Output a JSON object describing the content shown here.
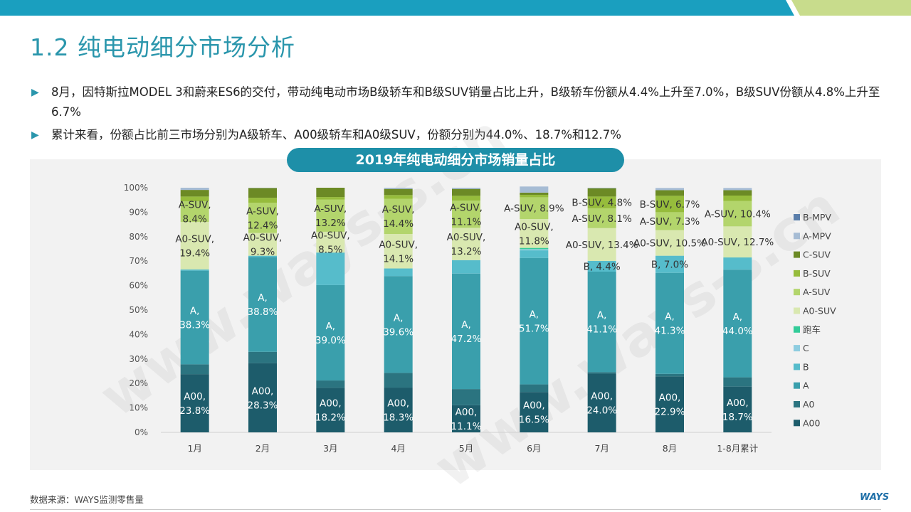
{
  "page": {
    "title": "1.2 纯电动细分市场分析",
    "bullets": [
      "8月，因特斯拉MODEL 3和蔚来ES6的交付，带动纯电动市场B级轿车和B级SUV销量占比上升，B级轿车份额从4.4%上升至7.0%，B级SUV份额从4.8%上升至6.7%",
      "累计来看，份额占比前三市场分别为A级轿车、A00级轿车和A0级SUV，份额分别为44.0%、18.7%和12.7%"
    ],
    "source": "数据来源：WAYS监测零售量",
    "logo": "WAYS",
    "watermark": "www.ways-s.cn"
  },
  "colors": {
    "A00": "#1d5c6b",
    "A0": "#2b7480",
    "A": "#3a9fac",
    "B": "#56bccb",
    "C": "#8ecde0",
    "跑车": "#33cc99",
    "A0-SUV": "#d9e8b0",
    "A-SUV": "#b3d56c",
    "B-SUV": "#96bc3c",
    "C-SUV": "#6c8a25",
    "A-MPV": "#a6bcd4",
    "B-MPV": "#5b7fab",
    "title_bg": "#1e8fa8",
    "heading": "#2a96ac"
  },
  "chart_data": {
    "type": "bar",
    "stacked": true,
    "title": "2019年纯电动细分市场销量占比",
    "categories": [
      "1月",
      "2月",
      "3月",
      "4月",
      "5月",
      "6月",
      "7月",
      "8月",
      "1-8月累计"
    ],
    "ylim": [
      0,
      100
    ],
    "yticks": [
      "0%",
      "10%",
      "20%",
      "30%",
      "40%",
      "50%",
      "60%",
      "70%",
      "80%",
      "90%",
      "100%"
    ],
    "legend_position": "right",
    "series": [
      {
        "name": "A00",
        "values": [
          23.8,
          28.3,
          18.2,
          18.3,
          11.1,
          16.5,
          24.0,
          22.9,
          18.7
        ]
      },
      {
        "name": "A0",
        "values": [
          4.0,
          4.6,
          3.0,
          6.0,
          6.6,
          3.1,
          0.6,
          1.0,
          3.8
        ]
      },
      {
        "name": "A",
        "values": [
          38.3,
          38.8,
          39.0,
          39.6,
          47.2,
          51.7,
          41.1,
          41.3,
          44.0
        ]
      },
      {
        "name": "B",
        "values": [
          0.5,
          0.5,
          13.3,
          3.1,
          5.5,
          3.1,
          4.4,
          7.0,
          5.0
        ]
      },
      {
        "name": "C",
        "values": [
          0.0,
          0.0,
          0.0,
          0.0,
          0.0,
          0.5,
          0.0,
          0.0,
          0.0
        ]
      },
      {
        "name": "跑车",
        "values": [
          0.0,
          0.0,
          0.0,
          0.0,
          0.0,
          0.5,
          0.0,
          0.0,
          0.0
        ]
      },
      {
        "name": "A0-SUV",
        "values": [
          19.4,
          9.3,
          8.5,
          14.1,
          13.2,
          11.8,
          13.4,
          10.5,
          12.7
        ]
      },
      {
        "name": "A-SUV",
        "values": [
          8.4,
          12.4,
          13.2,
          14.4,
          11.1,
          8.9,
          8.1,
          7.3,
          10.4
        ]
      },
      {
        "name": "B-SUV",
        "values": [
          2.0,
          2.0,
          1.0,
          1.5,
          2.0,
          1.0,
          4.8,
          6.7,
          2.2
        ]
      },
      {
        "name": "C-SUV",
        "values": [
          2.7,
          4.0,
          3.8,
          2.5,
          2.8,
          0.9,
          3.4,
          2.3,
          2.2
        ]
      },
      {
        "name": "A-MPV",
        "values": [
          0.9,
          0.1,
          0.0,
          0.5,
          0.5,
          2.5,
          0.2,
          0.9,
          0.9
        ]
      },
      {
        "name": "B-MPV",
        "values": [
          0.0,
          0.0,
          0.0,
          0.0,
          0.0,
          0.0,
          0.0,
          0.0,
          0.0
        ]
      }
    ],
    "data_labels": [
      {
        "cat": 0,
        "series": "A00",
        "text": [
          "A00,",
          "23.8%"
        ]
      },
      {
        "cat": 0,
        "series": "A",
        "text": [
          "A,",
          "38.3%"
        ]
      },
      {
        "cat": 0,
        "series": "A0-SUV",
        "text": [
          "A0-SUV,",
          "19.4%"
        ]
      },
      {
        "cat": 0,
        "series": "A-SUV",
        "text": [
          "A-SUV,",
          "8.4%"
        ]
      },
      {
        "cat": 1,
        "series": "A00",
        "text": [
          "A00,",
          "28.3%"
        ]
      },
      {
        "cat": 1,
        "series": "A",
        "text": [
          "A,",
          "38.8%"
        ]
      },
      {
        "cat": 1,
        "series": "A0-SUV",
        "text": [
          "A0-SUV,",
          "9.3%"
        ]
      },
      {
        "cat": 1,
        "series": "A-SUV",
        "text": [
          "A-SUV,",
          "12.4%"
        ]
      },
      {
        "cat": 2,
        "series": "A00",
        "text": [
          "A00,",
          "18.2%"
        ]
      },
      {
        "cat": 2,
        "series": "A",
        "text": [
          "A,",
          "39.0%"
        ]
      },
      {
        "cat": 2,
        "series": "A0-SUV",
        "text": [
          "A0-SUV,",
          "8.5%"
        ]
      },
      {
        "cat": 2,
        "series": "A-SUV",
        "text": [
          "A-SUV,",
          "13.2%"
        ]
      },
      {
        "cat": 3,
        "series": "A00",
        "text": [
          "A00,",
          "18.3%"
        ]
      },
      {
        "cat": 3,
        "series": "A",
        "text": [
          "A,",
          "39.6%"
        ]
      },
      {
        "cat": 3,
        "series": "A0-SUV",
        "text": [
          "A0-SUV,",
          "14.1%"
        ]
      },
      {
        "cat": 3,
        "series": "A-SUV",
        "text": [
          "A-SUV,",
          "14.4%"
        ]
      },
      {
        "cat": 4,
        "series": "A00",
        "text": [
          "A00,",
          "11.1%"
        ]
      },
      {
        "cat": 4,
        "series": "A",
        "text": [
          "A,",
          "47.2%"
        ]
      },
      {
        "cat": 4,
        "series": "A0-SUV",
        "text": [
          "A0-SUV,",
          "13.2%"
        ]
      },
      {
        "cat": 4,
        "series": "A-SUV",
        "text": [
          "A-SUV,",
          "11.1%"
        ]
      },
      {
        "cat": 5,
        "series": "A00",
        "text": [
          "A00,",
          "16.5%"
        ]
      },
      {
        "cat": 5,
        "series": "A",
        "text": [
          "A,",
          "51.7%"
        ]
      },
      {
        "cat": 5,
        "series": "A0-SUV",
        "text": [
          "A0-SUV,",
          "11.8%"
        ]
      },
      {
        "cat": 5,
        "series": "A-SUV",
        "text": [
          "A-SUV, 8.9%"
        ]
      },
      {
        "cat": 6,
        "series": "A00",
        "text": [
          "A00,",
          "24.0%"
        ]
      },
      {
        "cat": 6,
        "series": "A",
        "text": [
          "A,",
          "41.1%"
        ]
      },
      {
        "cat": 6,
        "series": "B",
        "text": [
          "B, 4.4%"
        ]
      },
      {
        "cat": 6,
        "series": "A0-SUV",
        "text": [
          "A0-SUV, 13.4%"
        ]
      },
      {
        "cat": 6,
        "series": "A-SUV",
        "text": [
          "A-SUV, 8.1%"
        ]
      },
      {
        "cat": 6,
        "series": "B-SUV",
        "text": [
          "B-SUV, 4.8%"
        ]
      },
      {
        "cat": 7,
        "series": "A00",
        "text": [
          "A00,",
          "22.9%"
        ]
      },
      {
        "cat": 7,
        "series": "A",
        "text": [
          "A,",
          "41.3%"
        ]
      },
      {
        "cat": 7,
        "series": "B",
        "text": [
          "B, 7.0%"
        ]
      },
      {
        "cat": 7,
        "series": "A0-SUV",
        "text": [
          "A0-SUV, 10.5%"
        ]
      },
      {
        "cat": 7,
        "series": "A-SUV",
        "text": [
          "A-SUV, 7.3%"
        ]
      },
      {
        "cat": 7,
        "series": "B-SUV",
        "text": [
          "B-SUV, 6.7%"
        ]
      },
      {
        "cat": 8,
        "series": "A00",
        "text": [
          "A00,",
          "18.7%"
        ]
      },
      {
        "cat": 8,
        "series": "A",
        "text": [
          "A,",
          "44.0%"
        ]
      },
      {
        "cat": 8,
        "series": "A0-SUV",
        "text": [
          "A0-SUV, 12.7%"
        ]
      },
      {
        "cat": 8,
        "series": "A-SUV",
        "text": [
          "A-SUV, 10.4%"
        ]
      }
    ],
    "legend_order": [
      "B-MPV",
      "A-MPV",
      "C-SUV",
      "B-SUV",
      "A-SUV",
      "A0-SUV",
      "跑车",
      "C",
      "B",
      "A",
      "A0",
      "A00"
    ]
  }
}
